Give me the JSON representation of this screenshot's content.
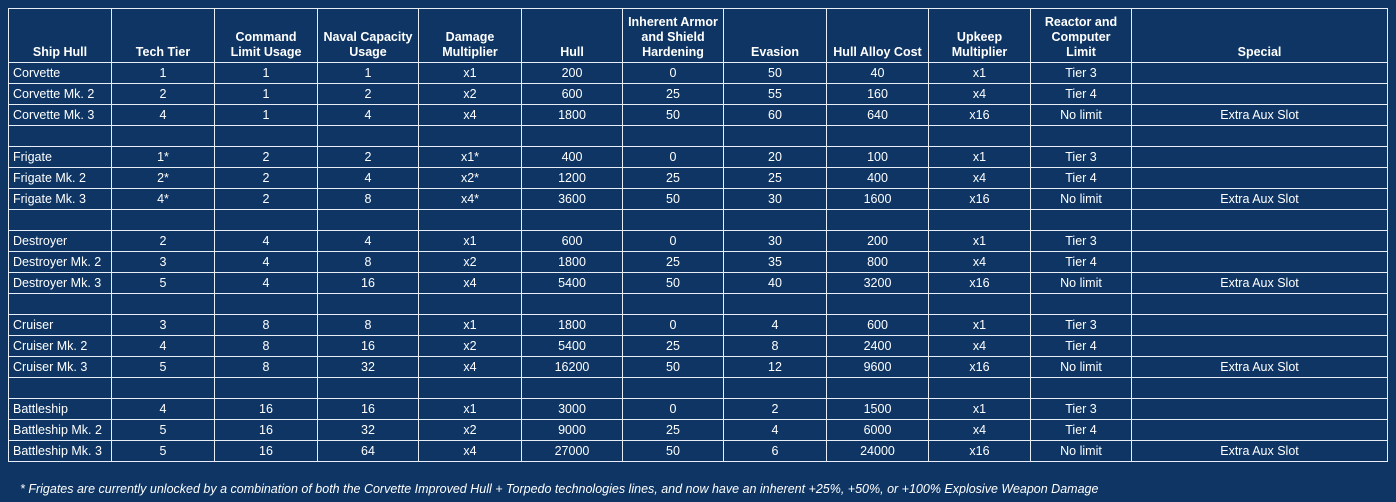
{
  "table": {
    "headers": [
      "Ship Hull",
      "Tech Tier",
      "Command Limit Usage",
      "Naval Capacity Usage",
      "Damage Multiplier",
      "Hull",
      "Inherent Armor and Shield Hardening",
      "Evasion",
      "Hull Alloy Cost",
      "Upkeep Multiplier",
      "Reactor and Computer Limit",
      "Special"
    ],
    "groups": [
      [
        [
          "Corvette",
          "1",
          "1",
          "1",
          "x1",
          "200",
          "0",
          "50",
          "40",
          "x1",
          "Tier 3",
          ""
        ],
        [
          "Corvette Mk. 2",
          "2",
          "1",
          "2",
          "x2",
          "600",
          "25",
          "55",
          "160",
          "x4",
          "Tier 4",
          ""
        ],
        [
          "Corvette Mk. 3",
          "4",
          "1",
          "4",
          "x4",
          "1800",
          "50",
          "60",
          "640",
          "x16",
          "No limit",
          "Extra Aux Slot"
        ]
      ],
      [
        [
          "Frigate",
          "1*",
          "2",
          "2",
          "x1*",
          "400",
          "0",
          "20",
          "100",
          "x1",
          "Tier 3",
          ""
        ],
        [
          "Frigate Mk. 2",
          "2*",
          "2",
          "4",
          "x2*",
          "1200",
          "25",
          "25",
          "400",
          "x4",
          "Tier 4",
          ""
        ],
        [
          "Frigate Mk. 3",
          "4*",
          "2",
          "8",
          "x4*",
          "3600",
          "50",
          "30",
          "1600",
          "x16",
          "No limit",
          "Extra Aux Slot"
        ]
      ],
      [
        [
          "Destroyer",
          "2",
          "4",
          "4",
          "x1",
          "600",
          "0",
          "30",
          "200",
          "x1",
          "Tier 3",
          ""
        ],
        [
          "Destroyer Mk. 2",
          "3",
          "4",
          "8",
          "x2",
          "1800",
          "25",
          "35",
          "800",
          "x4",
          "Tier 4",
          ""
        ],
        [
          "Destroyer Mk. 3",
          "5",
          "4",
          "16",
          "x4",
          "5400",
          "50",
          "40",
          "3200",
          "x16",
          "No limit",
          "Extra Aux Slot"
        ]
      ],
      [
        [
          "Cruiser",
          "3",
          "8",
          "8",
          "x1",
          "1800",
          "0",
          "4",
          "600",
          "x1",
          "Tier 3",
          ""
        ],
        [
          "Cruiser Mk. 2",
          "4",
          "8",
          "16",
          "x2",
          "5400",
          "25",
          "8",
          "2400",
          "x4",
          "Tier 4",
          ""
        ],
        [
          "Cruiser Mk. 3",
          "5",
          "8",
          "32",
          "x4",
          "16200",
          "50",
          "12",
          "9600",
          "x16",
          "No limit",
          "Extra Aux Slot"
        ]
      ],
      [
        [
          "Battleship",
          "4",
          "16",
          "16",
          "x1",
          "3000",
          "0",
          "2",
          "1500",
          "x1",
          "Tier 3",
          ""
        ],
        [
          "Battleship Mk. 2",
          "5",
          "16",
          "32",
          "x2",
          "9000",
          "25",
          "4",
          "6000",
          "x4",
          "Tier 4",
          ""
        ],
        [
          "Battleship Mk. 3",
          "5",
          "16",
          "64",
          "x4",
          "27000",
          "50",
          "6",
          "24000",
          "x16",
          "No limit",
          "Extra Aux Slot"
        ]
      ]
    ],
    "footnote": "* Frigates are currently unlocked by a combination of both the Corvette Improved Hull + Torpedo technologies lines, and now have an inherent +25%, +50%, or +100% Explosive Weapon Damage"
  }
}
